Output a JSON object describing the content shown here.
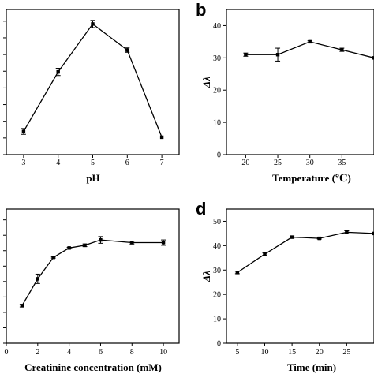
{
  "chart_data": [
    {
      "panel": "",
      "type": "line",
      "xlabel": "pH",
      "ylabel": "",
      "x": [
        3,
        4,
        5,
        6,
        7
      ],
      "xticks": [
        "3",
        "4",
        "5",
        "6",
        "7"
      ],
      "xlim": [
        2.5,
        7.5
      ],
      "yticks": [],
      "ylim": [
        0,
        100
      ],
      "series": [
        {
          "values": [
            16,
            57,
            90,
            72,
            12
          ],
          "errors": [
            2,
            2.5,
            2.5,
            1.5,
            0
          ]
        }
      ],
      "grid": false
    },
    {
      "panel": "b",
      "type": "line",
      "xlabel": "Temperature (℃)",
      "ylabel": "Δλ",
      "x": [
        20,
        25,
        30,
        35,
        40
      ],
      "xticks": [
        "20",
        "25",
        "30",
        "35"
      ],
      "xlim": [
        17,
        40
      ],
      "yticks": [
        "0",
        "10",
        "20",
        "30",
        "40"
      ],
      "ylim": [
        0,
        45
      ],
      "series": [
        {
          "values": [
            31,
            31,
            35,
            32.5,
            30
          ],
          "errors": [
            0.5,
            2,
            0.3,
            0.5,
            0
          ]
        }
      ],
      "grid": false
    },
    {
      "panel": "",
      "type": "line",
      "xlabel": "Creatinine concentration (mM)",
      "ylabel": "",
      "x": [
        1,
        2,
        3,
        4,
        5,
        6,
        8,
        10
      ],
      "xticks": [
        "0",
        "2",
        "4",
        "6",
        "8",
        "10"
      ],
      "xlim": [
        0,
        11
      ],
      "yticks": [],
      "ylim": [
        0,
        100
      ],
      "series": [
        {
          "values": [
            28,
            48,
            64,
            71,
            73,
            77,
            75,
            75
          ],
          "errors": [
            1,
            3.5,
            0.5,
            0.5,
            1,
            2.5,
            1,
            2
          ]
        }
      ],
      "grid": false
    },
    {
      "panel": "d",
      "type": "line",
      "xlabel": "Time (min)",
      "ylabel": "Δλ",
      "x": [
        5,
        10,
        15,
        20,
        25,
        30
      ],
      "xticks": [
        "5",
        "10",
        "15",
        "20",
        "25"
      ],
      "xlim": [
        3,
        30
      ],
      "yticks": [
        "0",
        "10",
        "20",
        "30",
        "40",
        "50"
      ],
      "ylim": [
        0,
        55
      ],
      "series": [
        {
          "values": [
            29,
            36.5,
            43.5,
            43,
            45.5,
            45
          ],
          "errors": [
            0.5,
            0.5,
            0.5,
            0.3,
            0.6,
            0
          ]
        }
      ],
      "grid": false
    }
  ]
}
